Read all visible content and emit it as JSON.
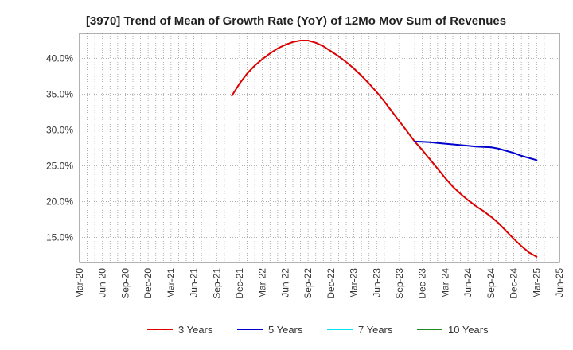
{
  "chart_data": {
    "type": "line",
    "title": "[3970]  Trend of Mean of Growth Rate (YoY) of 12Mo Mov Sum of Revenues",
    "xlabel": "",
    "ylabel": "",
    "x_ticks": [
      "Mar-20",
      "Jun-20",
      "Sep-20",
      "Dec-20",
      "Mar-21",
      "Jun-21",
      "Sep-21",
      "Dec-21",
      "Mar-22",
      "Jun-22",
      "Sep-22",
      "Dec-22",
      "Mar-23",
      "Jun-23",
      "Sep-23",
      "Dec-23",
      "Mar-24",
      "Jun-24",
      "Sep-24",
      "Dec-24",
      "Mar-25",
      "Jun-25"
    ],
    "y_ticks": [
      15.0,
      20.0,
      25.0,
      30.0,
      35.0,
      40.0
    ],
    "y_tick_labels": [
      "15.0%",
      "20.0%",
      "25.0%",
      "30.0%",
      "35.0%",
      "40.0%"
    ],
    "ylim": [
      11.5,
      43.5
    ],
    "grid": true,
    "legend_position": "bottom",
    "series": [
      {
        "name": "3 Years",
        "color": "#dd0000",
        "points": [
          [
            "Nov-21",
            34.8
          ],
          [
            "Dec-21",
            36.5
          ],
          [
            "Jan-22",
            37.9
          ],
          [
            "Feb-22",
            39.0
          ],
          [
            "Mar-22",
            39.9
          ],
          [
            "Apr-22",
            40.7
          ],
          [
            "May-22",
            41.4
          ],
          [
            "Jun-22",
            41.9
          ],
          [
            "Jul-22",
            42.3
          ],
          [
            "Aug-22",
            42.5
          ],
          [
            "Sep-22",
            42.5
          ],
          [
            "Oct-22",
            42.2
          ],
          [
            "Nov-22",
            41.7
          ],
          [
            "Dec-22",
            41.0
          ],
          [
            "Jan-23",
            40.3
          ],
          [
            "Feb-23",
            39.5
          ],
          [
            "Mar-23",
            38.6
          ],
          [
            "Apr-23",
            37.6
          ],
          [
            "May-23",
            36.5
          ],
          [
            "Jun-23",
            35.3
          ],
          [
            "Jul-23",
            34.0
          ],
          [
            "Aug-23",
            32.6
          ],
          [
            "Sep-23",
            31.2
          ],
          [
            "Oct-23",
            29.8
          ],
          [
            "Nov-23",
            28.4
          ],
          [
            "Dec-23",
            27.2
          ],
          [
            "Jan-24",
            25.9
          ],
          [
            "Feb-24",
            24.6
          ],
          [
            "Mar-24",
            23.3
          ],
          [
            "Apr-24",
            22.1
          ],
          [
            "May-24",
            21.1
          ],
          [
            "Jun-24",
            20.2
          ],
          [
            "Jul-24",
            19.4
          ],
          [
            "Aug-24",
            18.7
          ],
          [
            "Sep-24",
            17.9
          ],
          [
            "Oct-24",
            17.0
          ],
          [
            "Nov-24",
            15.9
          ],
          [
            "Dec-24",
            14.8
          ],
          [
            "Jan-25",
            13.8
          ],
          [
            "Feb-25",
            12.9
          ],
          [
            "Mar-25",
            12.3
          ]
        ]
      },
      {
        "name": "5 Years",
        "color": "#0000cc",
        "points": [
          [
            "Nov-23",
            28.4
          ],
          [
            "Dec-23",
            28.35
          ],
          [
            "Jan-24",
            28.3
          ],
          [
            "Feb-24",
            28.2
          ],
          [
            "Mar-24",
            28.1
          ],
          [
            "Apr-24",
            28.0
          ],
          [
            "May-24",
            27.9
          ],
          [
            "Jun-24",
            27.8
          ],
          [
            "Jul-24",
            27.7
          ],
          [
            "Aug-24",
            27.65
          ],
          [
            "Sep-24",
            27.6
          ],
          [
            "Oct-24",
            27.4
          ],
          [
            "Nov-24",
            27.1
          ],
          [
            "Dec-24",
            26.8
          ],
          [
            "Jan-25",
            26.4
          ],
          [
            "Feb-25",
            26.1
          ],
          [
            "Mar-25",
            25.8
          ]
        ]
      },
      {
        "name": "7 Years",
        "color": "#00e5ee",
        "points": []
      },
      {
        "name": "10 Years",
        "color": "#228b22",
        "points": []
      }
    ]
  }
}
